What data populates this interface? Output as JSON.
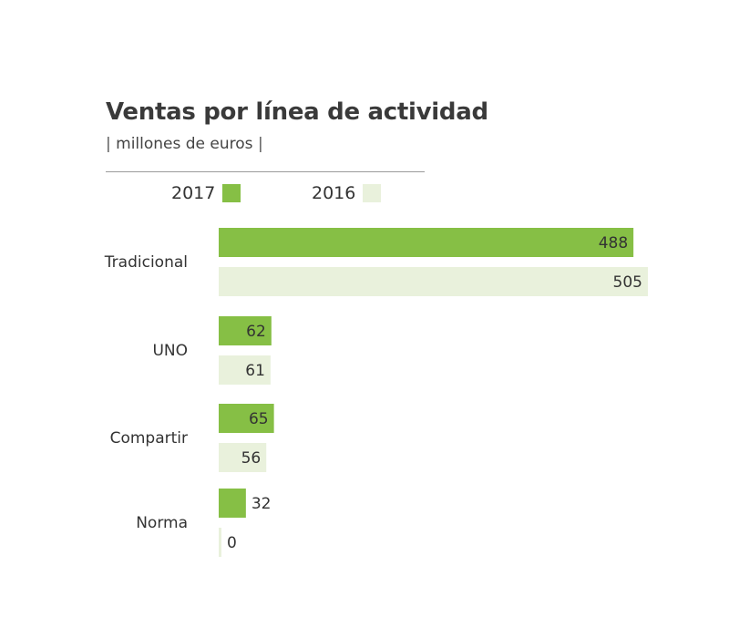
{
  "chart_data": {
    "type": "bar",
    "orientation": "horizontal",
    "title": "Ventas por línea de actividad",
    "subtitle": "millones de euros",
    "categories": [
      "Tradicional",
      "UNO",
      "Compartir",
      "Norma"
    ],
    "series": [
      {
        "name": "2017",
        "values": [
          488,
          62,
          65,
          32
        ],
        "color": "#86bf45"
      },
      {
        "name": "2016",
        "values": [
          505,
          61,
          56,
          0
        ],
        "color": "#e9f1dc"
      }
    ],
    "xlim": [
      0,
      505
    ],
    "grid": false,
    "legend_position": "top-left"
  }
}
